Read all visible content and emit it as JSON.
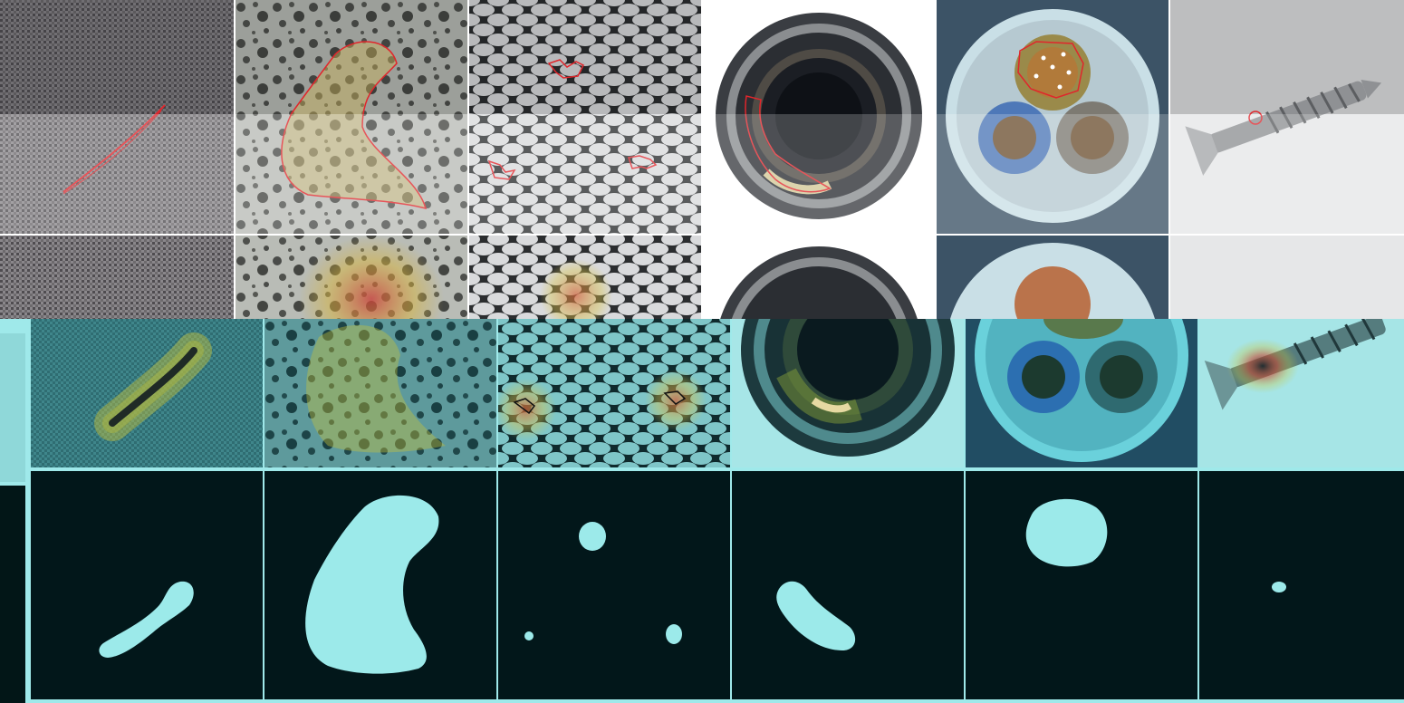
{
  "grid": {
    "columns": 6,
    "column_subjects": [
      "carpet",
      "tile",
      "grid",
      "bottle",
      "cable",
      "screw"
    ]
  },
  "rows": {
    "top": "image-with-red-contour",
    "middle": "heatmap-overlay",
    "bottom": "binary-mask"
  },
  "colors": {
    "contour": "#e0262c",
    "mask_fill": "#9ceaea",
    "mask_background": "#02171a",
    "band_background": "#9fe9ea",
    "heat_hot": "#d94a2a",
    "heat_warm": "#c9c43a",
    "heat_cool": "#2f7f86"
  }
}
